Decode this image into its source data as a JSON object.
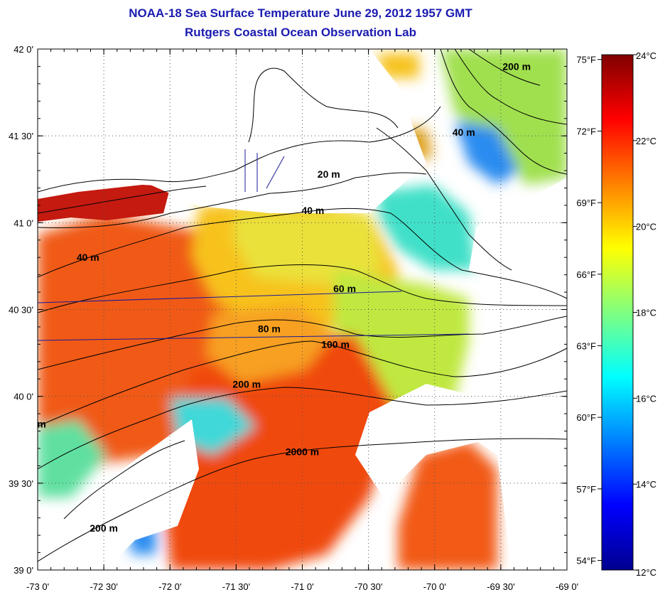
{
  "title": {
    "line1": "NOAA-18 Sea Surface Temperature June 29, 2012 1957 GMT",
    "line2": "Rutgers Coastal Ocean Observation Lab"
  },
  "map": {
    "lon_range": [
      -73.0,
      -69.0
    ],
    "lat_range": [
      39.0,
      42.0
    ],
    "x_ticks": [
      {
        "lon": -73.0,
        "label": "-73 0'"
      },
      {
        "lon": -72.5,
        "label": "-72 30'"
      },
      {
        "lon": -72.0,
        "label": "-72 0'"
      },
      {
        "lon": -71.5,
        "label": "-71 30'"
      },
      {
        "lon": -71.0,
        "label": "-71 0'"
      },
      {
        "lon": -70.5,
        "label": "-70 30'"
      },
      {
        "lon": -70.0,
        "label": "-70 0'"
      },
      {
        "lon": -69.5,
        "label": "-69 30'"
      },
      {
        "lon": -69.0,
        "label": "-69 0'"
      }
    ],
    "y_ticks": [
      {
        "lat": 42.0,
        "label": "42 0'"
      },
      {
        "lat": 41.5,
        "label": "41 30'"
      },
      {
        "lat": 41.0,
        "label": "41 0'"
      },
      {
        "lat": 40.5,
        "label": "40 30'"
      },
      {
        "lat": 40.0,
        "label": "40 0'"
      },
      {
        "lat": 39.5,
        "label": "39 30'"
      },
      {
        "lat": 39.0,
        "label": "39 0'"
      }
    ],
    "grid": "dotted",
    "depth_labels": [
      {
        "text": "20 m",
        "lon": -70.8,
        "lat": 41.26
      },
      {
        "text": "40 m",
        "lon": -70.92,
        "lat": 41.05
      },
      {
        "text": "40 m",
        "lon": -72.62,
        "lat": 40.78
      },
      {
        "text": "40 m",
        "lon": -69.78,
        "lat": 41.5
      },
      {
        "text": "60 m",
        "lon": -70.68,
        "lat": 40.6
      },
      {
        "text": "80 m",
        "lon": -71.25,
        "lat": 40.37
      },
      {
        "text": "100 m",
        "lon": -70.75,
        "lat": 40.28
      },
      {
        "text": "200 m",
        "lon": -71.42,
        "lat": 40.05
      },
      {
        "text": "200 m",
        "lon": -69.38,
        "lat": 41.88
      },
      {
        "text": "200 m",
        "lon": -72.5,
        "lat": 39.22
      },
      {
        "text": "m",
        "lon": -72.97,
        "lat": 39.82
      },
      {
        "text": "2000 m",
        "lon": -71.0,
        "lat": 39.66
      }
    ]
  },
  "colorbar": {
    "min_c": 12,
    "max_c": 24,
    "celsius_ticks": [
      {
        "value": 24,
        "label": "24°C"
      },
      {
        "value": 22,
        "label": "22°C"
      },
      {
        "value": 20,
        "label": "20°C"
      },
      {
        "value": 18,
        "label": "18°C"
      },
      {
        "value": 16,
        "label": "16°C"
      },
      {
        "value": 14,
        "label": "14°C"
      },
      {
        "value": 12,
        "label": "12°C"
      }
    ],
    "fahrenheit_ticks": [
      {
        "value": 75,
        "label": "75°F"
      },
      {
        "value": 72,
        "label": "72°F"
      },
      {
        "value": 69,
        "label": "69°F"
      },
      {
        "value": 66,
        "label": "66°F"
      },
      {
        "value": 63,
        "label": "63°F"
      },
      {
        "value": 60,
        "label": "60°F"
      },
      {
        "value": 57,
        "label": "57°F"
      },
      {
        "value": 54,
        "label": "54°F"
      }
    ],
    "colors": [
      "#00008f",
      "#0000ff",
      "#0080ff",
      "#00ffff",
      "#80ff80",
      "#ffff00",
      "#ff8000",
      "#ff0000",
      "#800000"
    ]
  }
}
